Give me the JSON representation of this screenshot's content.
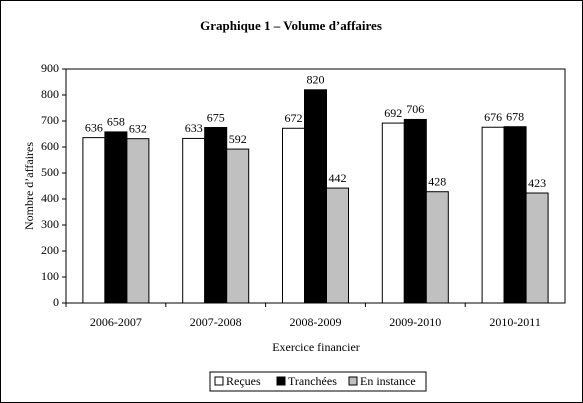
{
  "chart_data": {
    "type": "bar",
    "title": "Graphique 1 – Volume d’affaires",
    "x_label": "Exercice financier",
    "y_label": "Nombre d’affaires",
    "categories": [
      "2006-2007",
      "2007-2008",
      "2008-2009",
      "2009-2010",
      "2010-2011"
    ],
    "series": [
      {
        "name": "Reçues",
        "color": "#ffffff",
        "values": [
          636,
          633,
          672,
          692,
          676
        ]
      },
      {
        "name": "Tranchées",
        "color": "#000000",
        "values": [
          658,
          675,
          820,
          706,
          678
        ]
      },
      {
        "name": "En instance",
        "color": "#c0c0c0",
        "values": [
          632,
          592,
          442,
          428,
          423
        ]
      }
    ],
    "ylim": [
      0,
      900
    ],
    "yticks": [
      0,
      100,
      200,
      300,
      400,
      500,
      600,
      700,
      800,
      900
    ],
    "grid": false,
    "legend": "bottom"
  }
}
